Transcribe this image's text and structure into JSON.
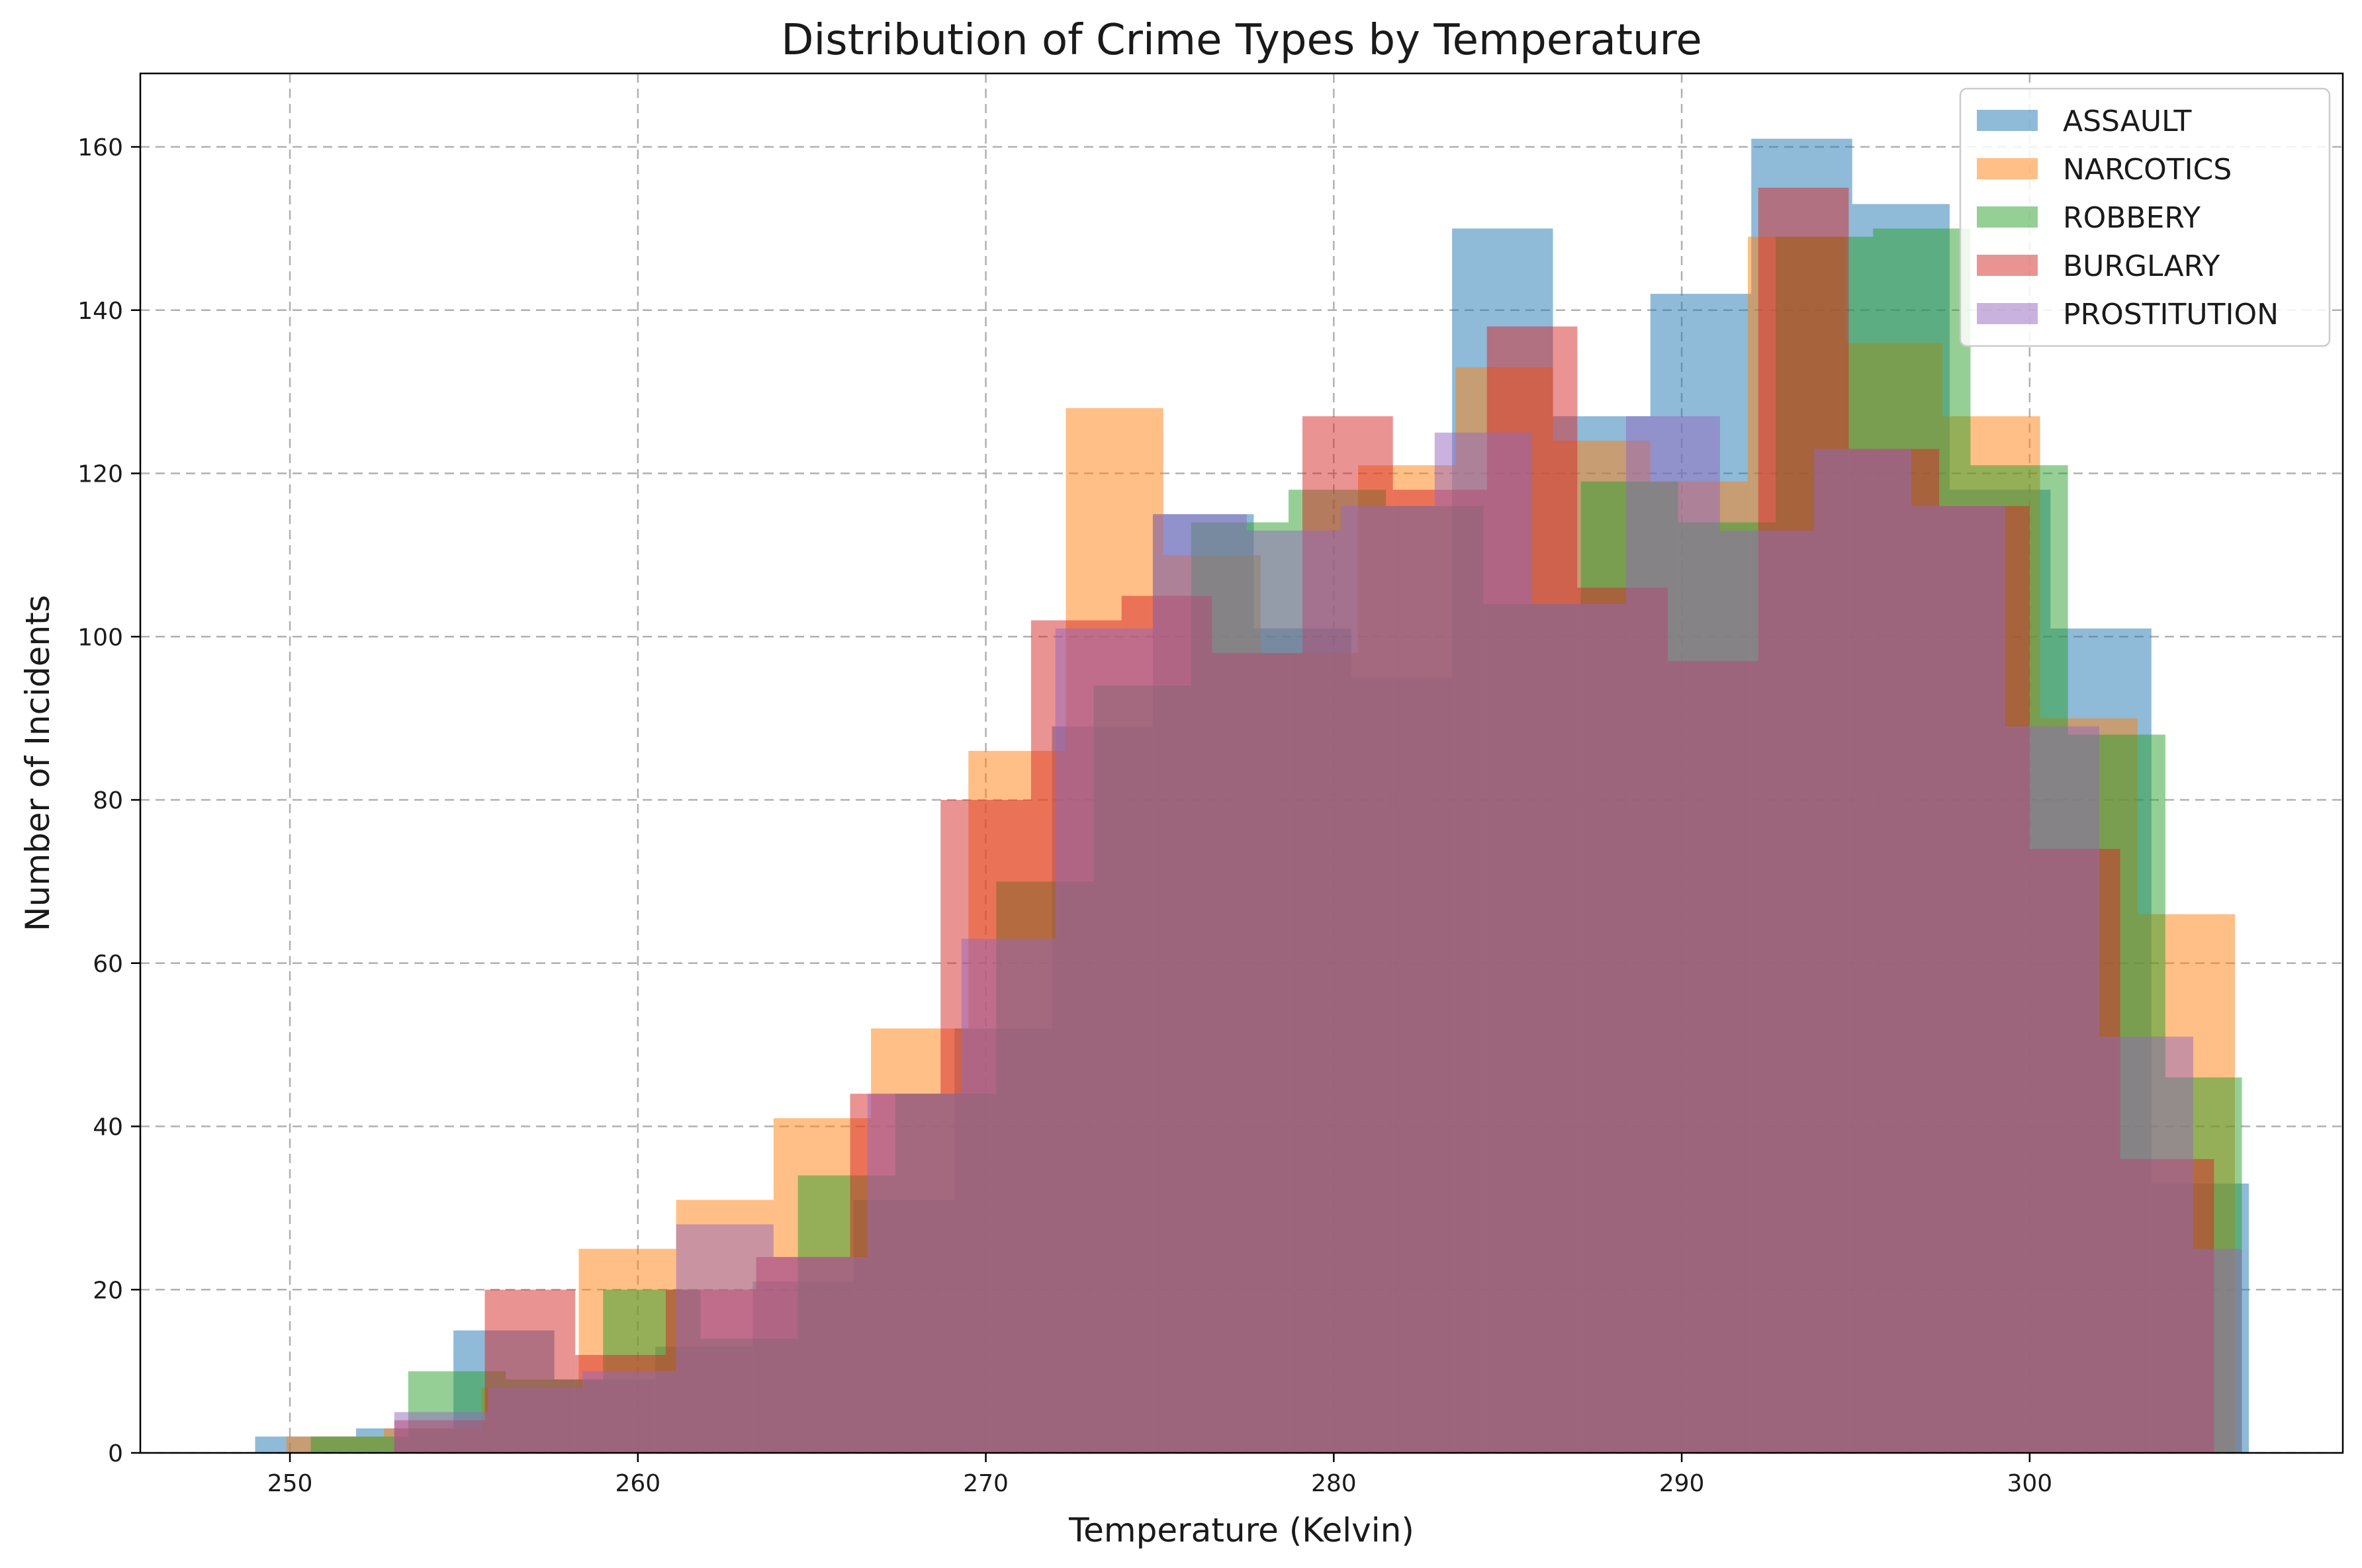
{
  "chart_data": {
    "type": "bar",
    "title": "Distribution of Crime Types by Temperature",
    "xlabel": "Temperature (Kelvin)",
    "ylabel": "Number of Incidents",
    "xlim": [
      245.7,
      309.0
    ],
    "ylim": [
      0,
      169
    ],
    "xticks": [
      250,
      260,
      270,
      280,
      290,
      300
    ],
    "yticks": [
      0,
      20,
      40,
      60,
      80,
      100,
      120,
      140,
      160
    ],
    "grid": true,
    "legend_position": "top-right",
    "series": [
      {
        "name": "ASSAULT",
        "color": "#1f77b4",
        "bin_edges": [
          249.0,
          251.9,
          254.7,
          257.6,
          260.5,
          263.3,
          266.2,
          269.1,
          271.9,
          274.8,
          277.7,
          280.5,
          283.4,
          286.3,
          289.1,
          292.0,
          294.9,
          297.7,
          300.6,
          303.5,
          306.3
        ],
        "values": [
          2,
          3,
          15,
          9,
          13,
          21,
          31,
          52,
          89,
          115,
          101,
          95,
          150,
          127,
          142,
          161,
          153,
          118,
          101,
          33
        ]
      },
      {
        "name": "NARCOTICS",
        "color": "#ff7f0e",
        "bin_edges": [
          249.9,
          252.7,
          255.5,
          258.3,
          261.1,
          263.9,
          266.7,
          269.5,
          272.3,
          275.1,
          277.9,
          280.7,
          283.5,
          286.3,
          289.1,
          291.9,
          294.7,
          297.5,
          300.3,
          303.1,
          305.9
        ],
        "values": [
          2,
          3,
          8,
          25,
          31,
          41,
          52,
          86,
          128,
          110,
          98,
          121,
          133,
          124,
          119,
          149,
          136,
          127,
          90,
          66
        ]
      },
      {
        "name": "ROBBERY",
        "color": "#2ca02c",
        "bin_edges": [
          250.6,
          253.4,
          256.2,
          259.0,
          261.8,
          264.6,
          267.4,
          270.3,
          273.1,
          275.9,
          278.7,
          281.5,
          284.3,
          287.1,
          289.9,
          292.7,
          295.5,
          298.3,
          301.1,
          303.9,
          306.1
        ],
        "values": [
          2,
          10,
          9,
          20,
          14,
          34,
          44,
          70,
          94,
          114,
          118,
          116,
          104,
          119,
          114,
          149,
          150,
          121,
          88,
          46
        ]
      },
      {
        "name": "BURGLARY",
        "color": "#d62728",
        "bin_edges": [
          253.0,
          255.6,
          258.2,
          260.8,
          263.4,
          266.1,
          268.7,
          271.3,
          273.9,
          276.5,
          279.1,
          281.7,
          284.4,
          287.0,
          289.6,
          292.2,
          294.8,
          297.4,
          300.0,
          302.6,
          305.3
        ],
        "values": [
          4,
          20,
          12,
          20,
          24,
          44,
          80,
          102,
          105,
          98,
          127,
          118,
          138,
          106,
          97,
          155,
          123,
          116,
          74,
          36
        ]
      },
      {
        "name": "PROSTITUTION",
        "color": "#9467bd",
        "bin_edges": [
          253.0,
          255.7,
          258.4,
          261.1,
          263.9,
          266.6,
          269.3,
          272.0,
          274.8,
          277.5,
          280.2,
          282.9,
          285.7,
          288.4,
          291.1,
          293.8,
          296.6,
          299.3,
          302.0,
          304.7,
          306.1
        ],
        "values": [
          5,
          8,
          10,
          28,
          24,
          44,
          63,
          101,
          115,
          113,
          116,
          125,
          104,
          127,
          113,
          123,
          116,
          89,
          51,
          25
        ]
      }
    ]
  }
}
